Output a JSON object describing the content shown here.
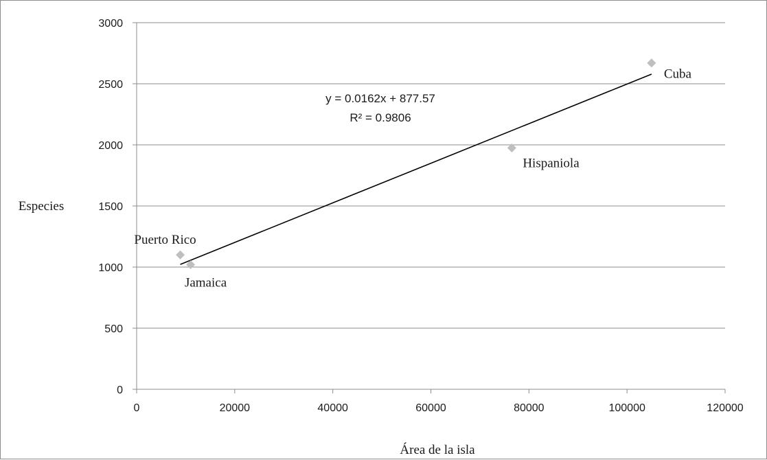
{
  "chart_data": {
    "type": "scatter",
    "title": "",
    "xlabel": "Área de la isla",
    "ylabel": "Especies",
    "xlim": [
      0,
      120000
    ],
    "ylim": [
      0,
      3000
    ],
    "x_ticks": [
      0,
      20000,
      40000,
      60000,
      80000,
      100000,
      120000
    ],
    "y_ticks": [
      0,
      500,
      1000,
      1500,
      2000,
      2500,
      3000
    ],
    "grid": "horizontal",
    "legend": "none",
    "marker": "diamond",
    "marker_color": "#bfbfbf",
    "trendline_color": "#000000",
    "points": [
      {
        "label": "Cuba",
        "x": 105000,
        "y": 2670
      },
      {
        "label": "Hispaniola",
        "x": 76500,
        "y": 1975
      },
      {
        "label": "Puerto Rico",
        "x": 8900,
        "y": 1100
      },
      {
        "label": "Jamaica",
        "x": 11000,
        "y": 1020
      }
    ],
    "trendline": {
      "slope": 0.0162,
      "intercept": 877.57,
      "x_start": 8900,
      "x_end": 105000,
      "equation": "y = 0.0162x + 877.57",
      "r_squared": "R² = 0.9806"
    }
  }
}
